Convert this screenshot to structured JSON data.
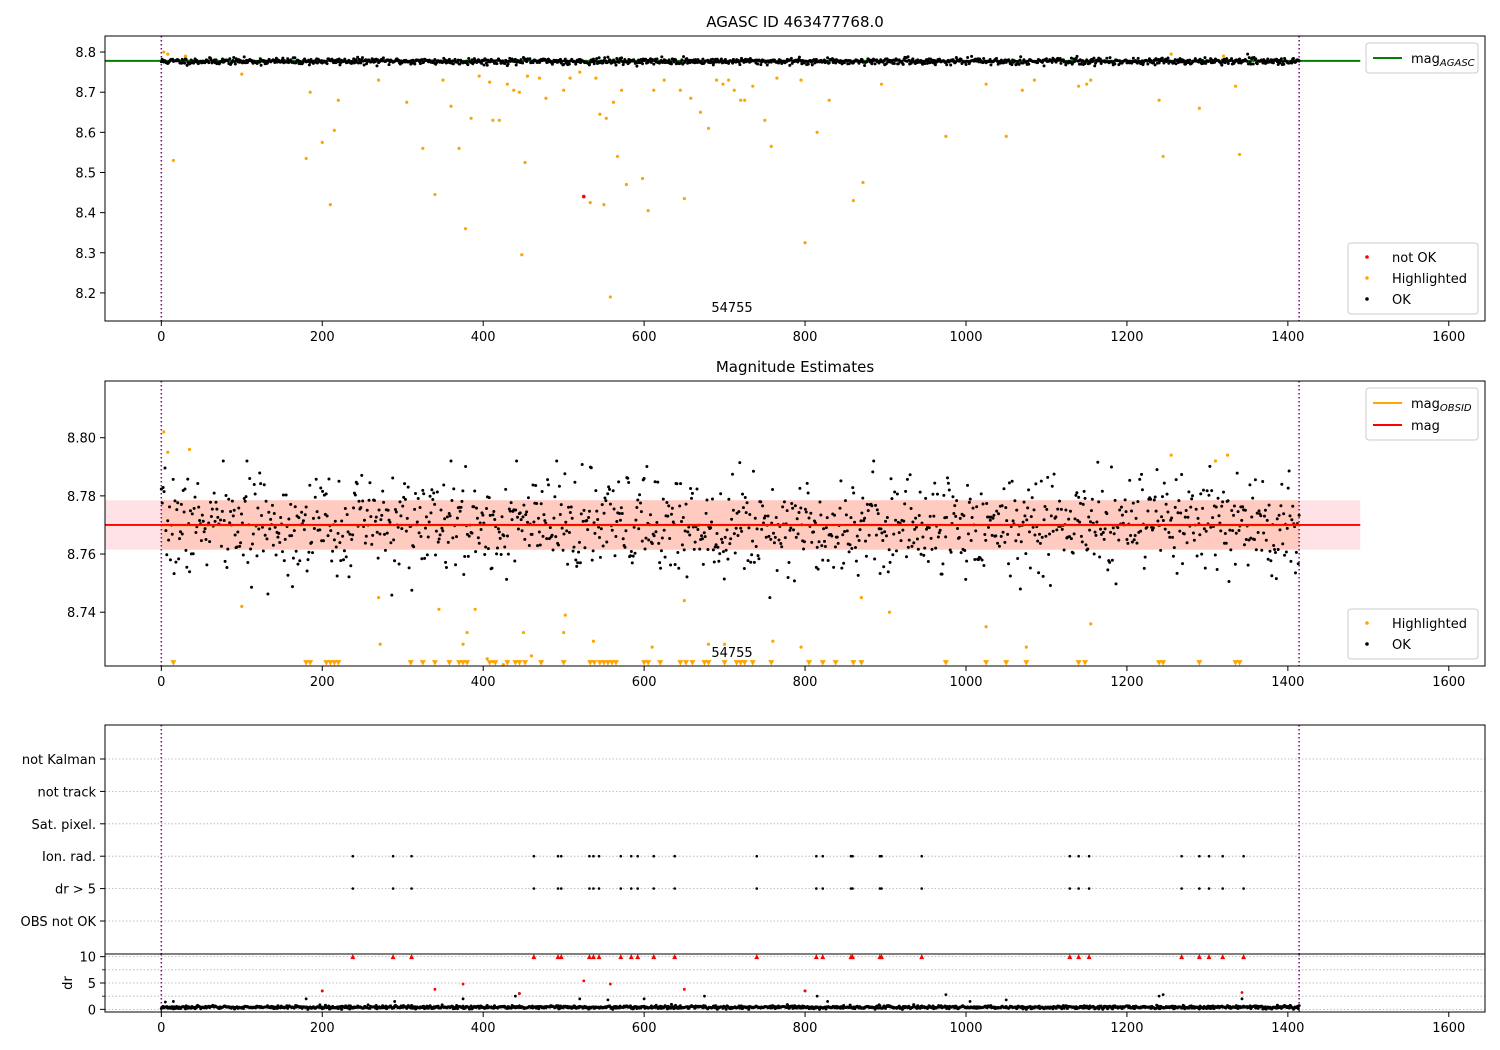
{
  "figure": {
    "top_title": "AGASC ID 463477768.0",
    "middle_title": "Magnitude Estimates",
    "obsid_label": "54755"
  },
  "colors": {
    "ok": "#000000",
    "highlighted": "#ffa500",
    "not_ok": "#ff0000",
    "mag_agasc": "#008000",
    "mag_obsid": "#ffa500",
    "mag": "#ff0000",
    "mag_band": "#ffb6c1",
    "obsid_band": "#ffa07a",
    "obs_boundary": "#800080",
    "grid": "#b0b0b0"
  },
  "chart_data": [
    {
      "id": "top",
      "type": "scatter",
      "title": "AGASC ID 463477768.0",
      "xlim": [
        -70,
        1645
      ],
      "ylim": [
        8.13,
        8.84
      ],
      "xticks": [
        0,
        200,
        400,
        600,
        800,
        1000,
        1200,
        1400,
        1600
      ],
      "yticks": [
        8.2,
        8.3,
        8.4,
        8.5,
        8.6,
        8.7,
        8.8
      ],
      "ytick_decimals": 1,
      "obs_boundaries": [
        0,
        1414
      ],
      "obsid_text": "54755",
      "hlines": [
        {
          "name": "mag_AGASC",
          "y": 8.778,
          "x": [
            -70,
            1490
          ]
        }
      ],
      "legend_lines": [
        {
          "base": "mag",
          "sub": "AGASC",
          "color_key": "mag_agasc"
        }
      ],
      "legend_points": [
        {
          "label": "not OK",
          "color_key": "not_ok"
        },
        {
          "label": "Highlighted",
          "color_key": "highlighted"
        },
        {
          "label": "OK",
          "color_key": "ok"
        }
      ],
      "ok_series": {
        "n": 1415,
        "x_start": 0,
        "x_end": 1414,
        "base": 8.777,
        "noise": 0.004,
        "ymin": 8.755,
        "ymax": 8.795
      },
      "highlighted": [
        [
          3,
          8.8
        ],
        [
          8,
          8.795
        ],
        [
          15,
          8.53
        ],
        [
          30,
          8.79
        ],
        [
          100,
          8.745
        ],
        [
          180,
          8.535
        ],
        [
          185,
          8.7
        ],
        [
          200,
          8.575
        ],
        [
          210,
          8.42
        ],
        [
          215,
          8.605
        ],
        [
          220,
          8.68
        ],
        [
          270,
          8.73
        ],
        [
          305,
          8.675
        ],
        [
          325,
          8.56
        ],
        [
          340,
          8.445
        ],
        [
          350,
          8.73
        ],
        [
          360,
          8.665
        ],
        [
          370,
          8.56
        ],
        [
          378,
          8.36
        ],
        [
          385,
          8.635
        ],
        [
          395,
          8.74
        ],
        [
          408,
          8.725
        ],
        [
          412,
          8.63
        ],
        [
          420,
          8.63
        ],
        [
          430,
          8.72
        ],
        [
          438,
          8.705
        ],
        [
          445,
          8.7
        ],
        [
          448,
          8.295
        ],
        [
          452,
          8.525
        ],
        [
          455,
          8.74
        ],
        [
          470,
          8.735
        ],
        [
          478,
          8.685
        ],
        [
          500,
          8.705
        ],
        [
          508,
          8.735
        ],
        [
          520,
          8.75
        ],
        [
          533,
          8.425
        ],
        [
          540,
          8.735
        ],
        [
          545,
          8.645
        ],
        [
          550,
          8.42
        ],
        [
          553,
          8.635
        ],
        [
          558,
          8.19
        ],
        [
          562,
          8.675
        ],
        [
          567,
          8.54
        ],
        [
          572,
          8.705
        ],
        [
          578,
          8.47
        ],
        [
          598,
          8.485
        ],
        [
          605,
          8.405
        ],
        [
          612,
          8.705
        ],
        [
          625,
          8.73
        ],
        [
          645,
          8.705
        ],
        [
          650,
          8.435
        ],
        [
          658,
          8.685
        ],
        [
          670,
          8.65
        ],
        [
          680,
          8.61
        ],
        [
          690,
          8.73
        ],
        [
          698,
          8.72
        ],
        [
          705,
          8.73
        ],
        [
          712,
          8.705
        ],
        [
          720,
          8.68
        ],
        [
          725,
          8.68
        ],
        [
          735,
          8.715
        ],
        [
          750,
          8.63
        ],
        [
          758,
          8.565
        ],
        [
          765,
          8.735
        ],
        [
          795,
          8.73
        ],
        [
          800,
          8.325
        ],
        [
          815,
          8.6
        ],
        [
          830,
          8.68
        ],
        [
          860,
          8.43
        ],
        [
          872,
          8.475
        ],
        [
          895,
          8.72
        ],
        [
          975,
          8.59
        ],
        [
          1025,
          8.72
        ],
        [
          1050,
          8.59
        ],
        [
          1070,
          8.705
        ],
        [
          1085,
          8.73
        ],
        [
          1140,
          8.715
        ],
        [
          1150,
          8.72
        ],
        [
          1155,
          8.73
        ],
        [
          1240,
          8.68
        ],
        [
          1245,
          8.54
        ],
        [
          1255,
          8.795
        ],
        [
          1290,
          8.66
        ],
        [
          1320,
          8.79
        ],
        [
          1335,
          8.715
        ],
        [
          1340,
          8.545
        ]
      ],
      "not_ok": [
        [
          525,
          8.44
        ]
      ]
    },
    {
      "id": "middle",
      "type": "scatter",
      "title": "Magnitude Estimates",
      "xlim": [
        -70,
        1645
      ],
      "ylim": [
        8.7215,
        8.8195
      ],
      "xticks": [
        0,
        200,
        400,
        600,
        800,
        1000,
        1200,
        1400,
        1600
      ],
      "yticks": [
        8.74,
        8.76,
        8.78,
        8.8
      ],
      "ytick_decimals": 2,
      "obs_boundaries": [
        0,
        1414
      ],
      "obsid_text": "54755",
      "band_mag": {
        "x": [
          -70,
          1490
        ],
        "y": [
          8.7615,
          8.7785
        ]
      },
      "band_obsid": {
        "x": [
          0,
          1414
        ],
        "y": [
          8.7615,
          8.7785
        ]
      },
      "hlines": [
        {
          "name": "mag_OBSID",
          "y": 8.77,
          "x": [
            0,
            1414
          ]
        },
        {
          "name": "mag",
          "y": 8.77,
          "x": [
            -70,
            1490
          ]
        }
      ],
      "legend_lines": [
        {
          "base": "mag",
          "sub": "OBSID",
          "color_key": "mag_obsid"
        },
        {
          "base": "mag",
          "sub": "",
          "color_key": "mag"
        }
      ],
      "legend_points": [
        {
          "label": "Highlighted",
          "color_key": "highlighted"
        },
        {
          "label": "OK",
          "color_key": "ok"
        }
      ],
      "ok_series": {
        "n": 1250,
        "x_start": 0,
        "x_end": 1414,
        "base": 8.77,
        "noise": 0.0085,
        "ymin": 8.745,
        "ymax": 8.792
      },
      "highlighted": [
        [
          3,
          8.802
        ],
        [
          8,
          8.795
        ],
        [
          35,
          8.796
        ],
        [
          100,
          8.742
        ],
        [
          270,
          8.745
        ],
        [
          272,
          8.729
        ],
        [
          345,
          8.741
        ],
        [
          375,
          8.729
        ],
        [
          380,
          8.733
        ],
        [
          390,
          8.741
        ],
        [
          405,
          8.724
        ],
        [
          412,
          8.723
        ],
        [
          425,
          8.722
        ],
        [
          450,
          8.733
        ],
        [
          460,
          8.725
        ],
        [
          500,
          8.733
        ],
        [
          502,
          8.739
        ],
        [
          537,
          8.73
        ],
        [
          610,
          8.728
        ],
        [
          650,
          8.744
        ],
        [
          680,
          8.729
        ],
        [
          700,
          8.729
        ],
        [
          760,
          8.73
        ],
        [
          795,
          8.728
        ],
        [
          870,
          8.745
        ],
        [
          905,
          8.74
        ],
        [
          1025,
          8.735
        ],
        [
          1075,
          8.728
        ],
        [
          1155,
          8.736
        ],
        [
          1255,
          8.794
        ],
        [
          1310,
          8.792
        ],
        [
          1325,
          8.794
        ]
      ],
      "floor_markers": {
        "y": 8.7225,
        "x": [
          15,
          180,
          185,
          205,
          210,
          215,
          220,
          310,
          325,
          340,
          358,
          370,
          375,
          380,
          408,
          415,
          430,
          440,
          445,
          452,
          472,
          500,
          533,
          538,
          545,
          550,
          555,
          560,
          565,
          600,
          605,
          620,
          645,
          652,
          660,
          675,
          680,
          700,
          715,
          720,
          725,
          735,
          758,
          805,
          822,
          838,
          860,
          870,
          975,
          1025,
          1050,
          1075,
          1140,
          1148,
          1240,
          1245,
          1290,
          1335,
          1340
        ]
      }
    },
    {
      "id": "flags",
      "type": "scatter",
      "xlim": [
        -70,
        1645
      ],
      "rows": [
        "not Kalman",
        "not track",
        "Sat. pixel.",
        "Ion. rad.",
        "dr > 5",
        "OBS not OK"
      ],
      "flag_points": {
        "Ion. rad.": [
          238,
          288,
          311,
          463,
          493,
          497,
          532,
          537,
          544,
          571,
          584,
          592,
          612,
          638,
          740,
          814,
          822,
          857,
          859,
          893,
          895,
          945,
          1129,
          1140,
          1153,
          1268,
          1290,
          1302,
          1319,
          1345
        ],
        "dr > 5": [
          238,
          288,
          311,
          463,
          493,
          497,
          532,
          537,
          544,
          571,
          584,
          592,
          612,
          638,
          740,
          814,
          822,
          857,
          859,
          893,
          895,
          945,
          1129,
          1140,
          1153,
          1268,
          1290,
          1302,
          1319,
          1345
        ]
      },
      "obs_boundaries": [
        0,
        1414
      ]
    },
    {
      "id": "dr",
      "type": "scatter",
      "ylabel": "dr",
      "xlim": [
        -70,
        1645
      ],
      "ylim": [
        -0.5,
        10.5
      ],
      "xticks": [
        0,
        200,
        400,
        600,
        800,
        1000,
        1200,
        1400,
        1600
      ],
      "yticks": [
        0,
        5,
        10
      ],
      "yticks_minor": [
        2.5,
        7.5
      ],
      "obs_boundaries": [
        0,
        1414
      ],
      "ok_series": {
        "n": 1415,
        "x_start": 0,
        "x_end": 1414,
        "base": 0.4,
        "noise": 0.15,
        "ymin": 0.0,
        "ymax": 1.2
      },
      "scattered": [
        [
          5,
          1.4
        ],
        [
          15,
          1.5
        ],
        [
          180,
          2.0
        ],
        [
          200,
          3.5
        ],
        [
          290,
          1.5
        ],
        [
          375,
          2.0
        ],
        [
          440,
          2.5
        ],
        [
          445,
          3.0
        ],
        [
          520,
          2.0
        ],
        [
          555,
          1.8
        ],
        [
          600,
          2.0
        ],
        [
          675,
          2.5
        ],
        [
          800,
          3.5
        ],
        [
          815,
          2.5
        ],
        [
          828,
          1.5
        ],
        [
          975,
          2.8
        ],
        [
          1005,
          1.5
        ],
        [
          1050,
          1.8
        ],
        [
          1240,
          2.5
        ],
        [
          1245,
          2.8
        ],
        [
          1343,
          2.0
        ]
      ],
      "scattered_red": [
        [
          200,
          3.5
        ],
        [
          340,
          3.8
        ],
        [
          375,
          4.8
        ],
        [
          445,
          3.0
        ],
        [
          525,
          5.4
        ],
        [
          558,
          4.8
        ],
        [
          650,
          3.8
        ],
        [
          800,
          3.5
        ],
        [
          1343,
          3.2
        ]
      ],
      "capped": [
        238,
        288,
        311,
        463,
        493,
        497,
        532,
        537,
        544,
        571,
        584,
        592,
        612,
        638,
        740,
        814,
        822,
        857,
        859,
        893,
        895,
        945,
        1129,
        1140,
        1153,
        1268,
        1290,
        1302,
        1319,
        1345
      ],
      "cap_value": 10
    }
  ]
}
